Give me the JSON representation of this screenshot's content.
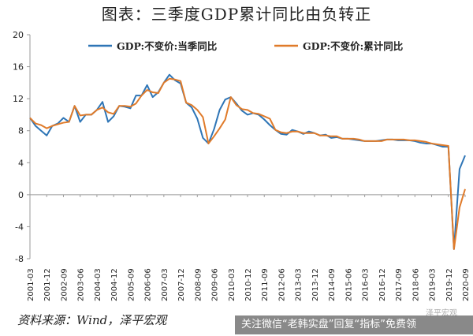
{
  "title": "图表：三季度GDP累计同比由负转正",
  "source": "资料来源：Wind，泽平宏观",
  "watermark": "关注微信“老韩实盘”回复“指标”免费领",
  "watermark_corner": "泽平宏观",
  "colors": {
    "series1": "#2e75b6",
    "series2": "#e07b2a",
    "axis": "#999999",
    "text": "#222222"
  },
  "chart_data": {
    "type": "line",
    "title": "图表：三季度GDP累计同比由负转正",
    "xlabel": "",
    "ylabel": "",
    "ylim": [
      -8,
      20
    ],
    "yticks": [
      -8,
      -4,
      0,
      4,
      8,
      12,
      16,
      20
    ],
    "xtick_labels": [
      "2001-03",
      "2001-12",
      "2002-09",
      "2003-06",
      "2004-03",
      "2004-12",
      "2005-09",
      "2006-06",
      "2007-03",
      "2007-12",
      "2008-09",
      "2009-06",
      "2010-03",
      "2010-12",
      "2011-09",
      "2012-06",
      "2013-03",
      "2013-12",
      "2014-09",
      "2015-06",
      "2016-03",
      "2016-12",
      "2017-09",
      "2018-06",
      "2019-03",
      "2019-12",
      "2020-09"
    ],
    "grid": false,
    "legend_position": "top",
    "x": [
      "2001-03",
      "2001-06",
      "2001-09",
      "2001-12",
      "2002-03",
      "2002-06",
      "2002-09",
      "2002-12",
      "2003-03",
      "2003-06",
      "2003-09",
      "2003-12",
      "2004-03",
      "2004-06",
      "2004-09",
      "2004-12",
      "2005-03",
      "2005-06",
      "2005-09",
      "2005-12",
      "2006-03",
      "2006-06",
      "2006-09",
      "2006-12",
      "2007-03",
      "2007-06",
      "2007-09",
      "2007-12",
      "2008-03",
      "2008-06",
      "2008-09",
      "2008-12",
      "2009-03",
      "2009-06",
      "2009-09",
      "2009-12",
      "2010-03",
      "2010-06",
      "2010-09",
      "2010-12",
      "2011-03",
      "2011-06",
      "2011-09",
      "2011-12",
      "2012-03",
      "2012-06",
      "2012-09",
      "2012-12",
      "2013-03",
      "2013-06",
      "2013-09",
      "2013-12",
      "2014-03",
      "2014-06",
      "2014-09",
      "2014-12",
      "2015-03",
      "2015-06",
      "2015-09",
      "2015-12",
      "2016-03",
      "2016-06",
      "2016-09",
      "2016-12",
      "2017-03",
      "2017-06",
      "2017-09",
      "2017-12",
      "2018-03",
      "2018-06",
      "2018-09",
      "2018-12",
      "2019-03",
      "2019-06",
      "2019-09",
      "2019-12",
      "2020-03",
      "2020-06",
      "2020-09"
    ],
    "series": [
      {
        "name": "GDP:不变价:当季同比",
        "color": "#2e75b6",
        "values": [
          9.6,
          8.6,
          8.0,
          7.4,
          8.6,
          8.9,
          9.6,
          9.1,
          11.1,
          9.1,
          10.0,
          10.0,
          10.6,
          11.6,
          9.1,
          9.8,
          11.1,
          11.0,
          10.8,
          12.4,
          12.4,
          13.7,
          12.2,
          12.8,
          14.0,
          15.0,
          14.3,
          13.9,
          11.5,
          10.9,
          9.5,
          7.1,
          6.4,
          8.2,
          10.6,
          11.9,
          12.2,
          11.4,
          10.5,
          10.0,
          10.2,
          10.0,
          9.4,
          8.7,
          8.1,
          7.6,
          7.5,
          8.1,
          7.9,
          7.6,
          7.9,
          7.7,
          7.4,
          7.5,
          7.1,
          7.2,
          7.0,
          7.0,
          6.9,
          6.8,
          6.7,
          6.7,
          6.7,
          6.8,
          6.9,
          6.9,
          6.8,
          6.8,
          6.8,
          6.7,
          6.5,
          6.4,
          6.4,
          6.2,
          6.0,
          6.0,
          -6.8,
          3.2,
          4.9
        ]
      },
      {
        "name": "GDP:不变价:累计同比",
        "color": "#e07b2a",
        "values": [
          9.6,
          8.9,
          8.7,
          8.3,
          8.6,
          8.8,
          9.0,
          9.1,
          11.1,
          9.9,
          10.0,
          10.0,
          10.6,
          10.9,
          10.3,
          10.1,
          11.1,
          11.1,
          11.0,
          11.4,
          12.4,
          13.1,
          12.8,
          12.7,
          14.0,
          14.5,
          14.4,
          14.2,
          11.5,
          11.2,
          10.6,
          9.7,
          6.4,
          7.3,
          8.3,
          9.4,
          12.2,
          11.2,
          10.7,
          10.6,
          10.2,
          10.1,
          9.8,
          9.5,
          8.1,
          7.8,
          7.7,
          7.9,
          7.9,
          7.7,
          7.7,
          7.7,
          7.4,
          7.4,
          7.3,
          7.3,
          7.0,
          7.0,
          7.0,
          6.9,
          6.7,
          6.7,
          6.7,
          6.7,
          6.9,
          6.9,
          6.9,
          6.9,
          6.8,
          6.8,
          6.7,
          6.6,
          6.4,
          6.3,
          6.2,
          6.1,
          -6.8,
          -1.6,
          0.7
        ]
      }
    ]
  }
}
